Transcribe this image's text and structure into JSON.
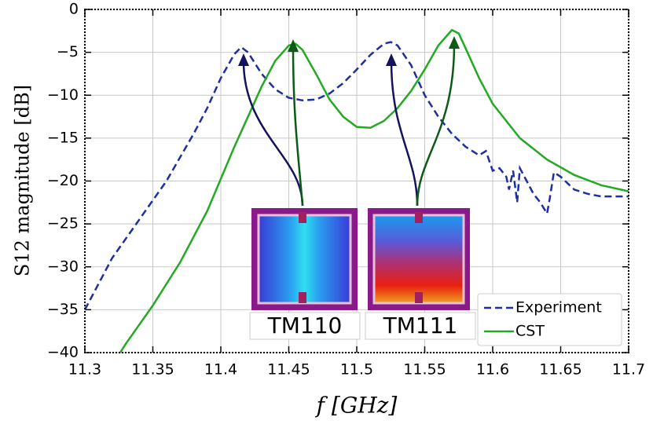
{
  "chart_data": {
    "type": "line",
    "ylabel": "S12 magnitude [dB]",
    "xlabel": "f [GHz]",
    "xlim": [
      11.3,
      11.7
    ],
    "ylim": [
      -40,
      0
    ],
    "xticks": [
      11.3,
      11.35,
      11.4,
      11.45,
      11.5,
      11.55,
      11.6,
      11.65,
      11.7
    ],
    "yticks": [
      {
        "value": -40,
        "label": "−40"
      },
      {
        "value": -35,
        "label": "−35"
      },
      {
        "value": -30,
        "label": "−30"
      },
      {
        "value": -25,
        "label": "−25"
      },
      {
        "value": -20,
        "label": "−20"
      },
      {
        "value": -15,
        "label": "−15"
      },
      {
        "value": -10,
        "label": "−10"
      },
      {
        "value": -5,
        "label": "−5"
      },
      0
    ],
    "grid": true,
    "legend": "lower right",
    "annotations": [
      "TM110",
      "TM111"
    ],
    "series": [
      {
        "name": "Experiment",
        "color": "#1f2f9f",
        "dash": true,
        "x": [
          11.3,
          11.32,
          11.34,
          11.36,
          11.38,
          11.39,
          11.4,
          11.41,
          11.415,
          11.42,
          11.43,
          11.44,
          11.45,
          11.46,
          11.47,
          11.48,
          11.49,
          11.5,
          11.51,
          11.52,
          11.525,
          11.53,
          11.54,
          11.55,
          11.56,
          11.57,
          11.58,
          11.59,
          11.595,
          11.6,
          11.605,
          11.61,
          11.612,
          11.615,
          11.618,
          11.62,
          11.625,
          11.63,
          11.635,
          11.64,
          11.642,
          11.645,
          11.65,
          11.66,
          11.67,
          11.68,
          11.7
        ],
        "values": [
          -35,
          -29,
          -24.5,
          -20,
          -14.5,
          -11.5,
          -8,
          -5.2,
          -4.4,
          -5,
          -7.5,
          -9.3,
          -10.3,
          -10.6,
          -10.5,
          -9.8,
          -8.6,
          -7,
          -5.3,
          -4,
          -3.8,
          -4.2,
          -6.5,
          -10,
          -12.5,
          -14.5,
          -16,
          -17,
          -16.5,
          -18.8,
          -18.5,
          -19.5,
          -21,
          -18.8,
          -22.5,
          -18.5,
          -20,
          -21.5,
          -22.5,
          -23.8,
          -22,
          -19,
          -19.5,
          -21,
          -21.5,
          -21.8,
          -21.8
        ]
      },
      {
        "name": "CST",
        "color": "#22aa22",
        "dash": false,
        "x": [
          11.326,
          11.33,
          11.35,
          11.37,
          11.39,
          11.41,
          11.43,
          11.44,
          11.45,
          11.455,
          11.46,
          11.47,
          11.48,
          11.49,
          11.5,
          11.51,
          11.52,
          11.53,
          11.54,
          11.55,
          11.56,
          11.57,
          11.575,
          11.58,
          11.59,
          11.6,
          11.62,
          11.64,
          11.66,
          11.68,
          11.7
        ],
        "values": [
          -40,
          -39,
          -34.5,
          -29.5,
          -23.5,
          -16,
          -9,
          -6,
          -4.2,
          -4,
          -4.7,
          -7.5,
          -10.5,
          -12.5,
          -13.7,
          -13.8,
          -13,
          -11.5,
          -9.5,
          -7,
          -4.2,
          -2.4,
          -2.8,
          -4.5,
          -8,
          -11,
          -15,
          -17.5,
          -19.3,
          -20.5,
          -21.2
        ]
      }
    ]
  }
}
